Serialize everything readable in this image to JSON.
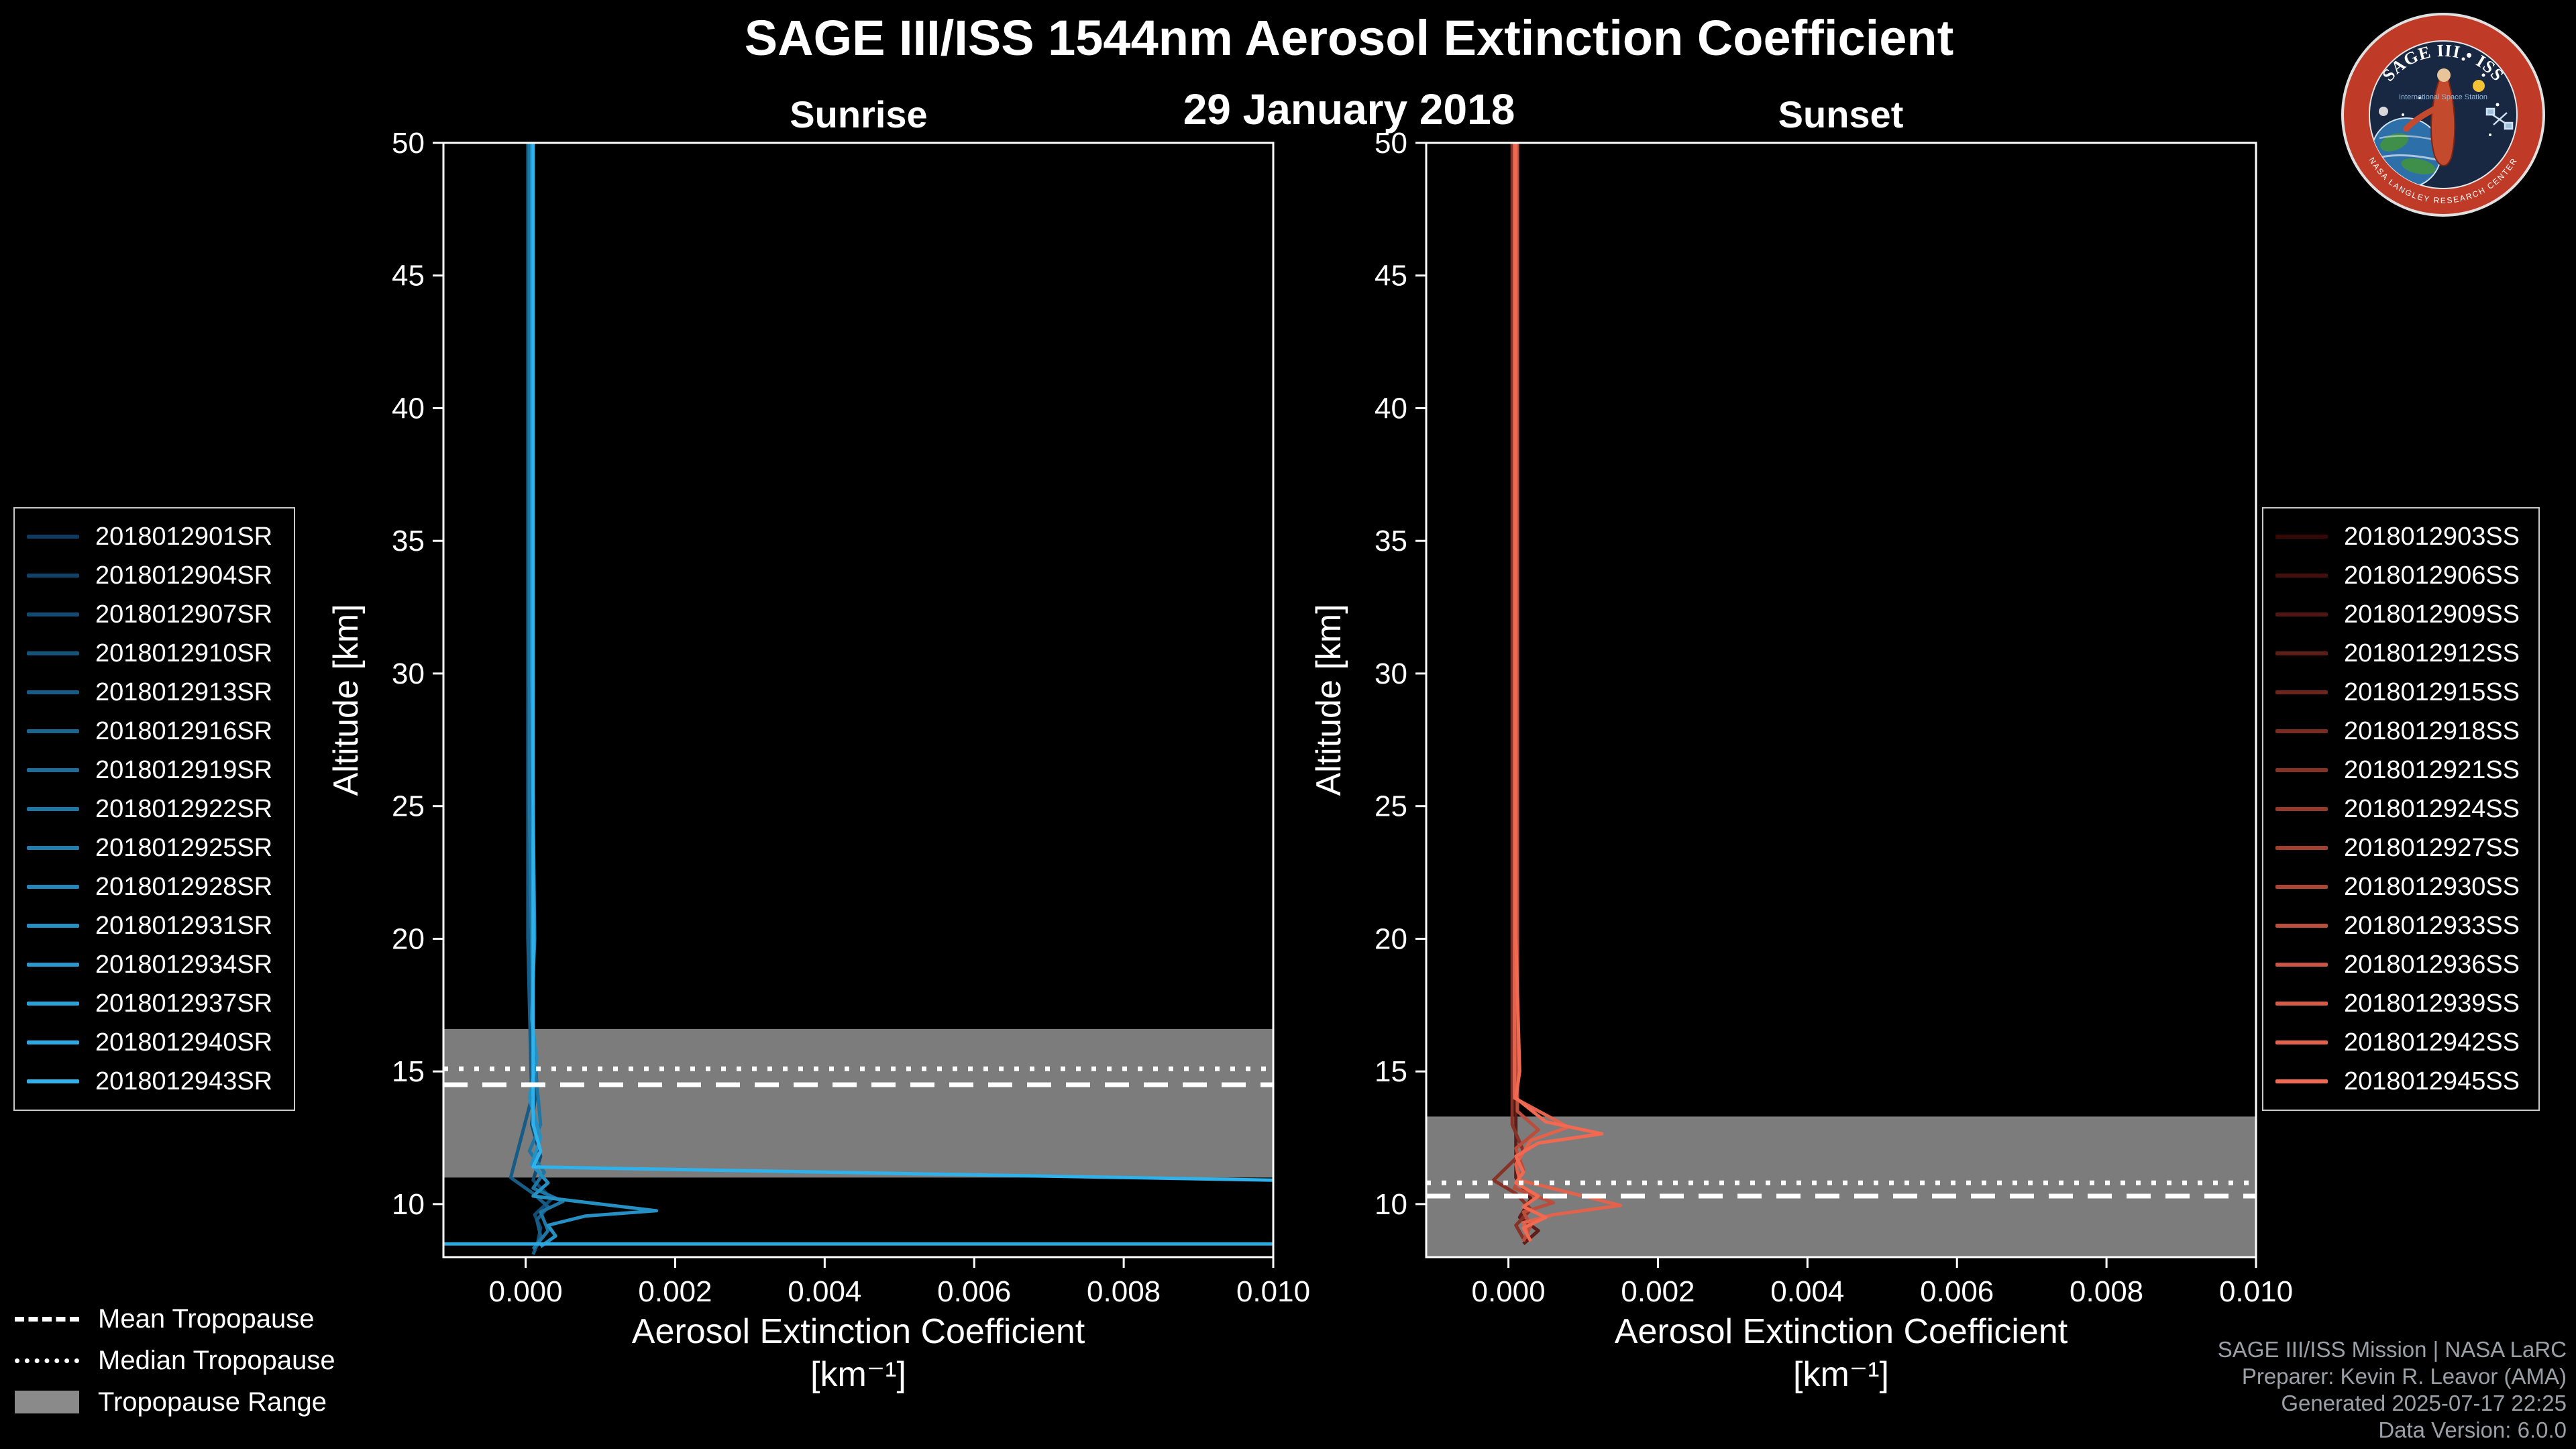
{
  "header": {
    "title": "SAGE III/ISS 1544nm Aerosol Extinction Coefficient",
    "date": "29 January 2018"
  },
  "logo": {
    "title": "SAGE III • ISS",
    "subtitle": "International Space Station",
    "ring_text": "NASA LANGLEY RESEARCH CENTER"
  },
  "tropopause_legend": {
    "mean": "Mean Tropopause",
    "median": "Median Tropopause",
    "range": "Tropopause Range"
  },
  "footer": {
    "line1": "SAGE III/ISS Mission | NASA LaRC",
    "line2": "Preparer: Kevin R. Leavor (AMA)",
    "line3": "Generated 2025-07-17 22:25",
    "line4": "Data Version: 6.0.0"
  },
  "chart_data": [
    {
      "type": "line",
      "title": "Sunrise",
      "xlabel": "Aerosol Extinction Coefficient",
      "xlabel_units": "[km⁻¹]",
      "ylabel": "Altitude [km]",
      "xlim": [
        -0.0011,
        0.01
      ],
      "ylim": [
        8,
        50
      ],
      "xticks": [
        0.0,
        0.002,
        0.004,
        0.006,
        0.008,
        0.01
      ],
      "xtick_labels": [
        "0.000",
        "0.002",
        "0.004",
        "0.006",
        "0.008",
        "0.010"
      ],
      "yticks": [
        10,
        15,
        20,
        25,
        30,
        35,
        40,
        45,
        50
      ],
      "tropopause": {
        "mean": 14.5,
        "median": 15.1,
        "range": [
          11.0,
          16.6
        ]
      },
      "legend": [
        {
          "label": "2018012901SR",
          "color": "#0D3A5E"
        },
        {
          "label": "2018012904SR",
          "color": "#0F4368"
        },
        {
          "label": "2018012907SR",
          "color": "#124B72"
        },
        {
          "label": "2018012910SR",
          "color": "#14547C"
        },
        {
          "label": "2018012913SR",
          "color": "#175C86"
        },
        {
          "label": "2018012916SR",
          "color": "#196590"
        },
        {
          "label": "2018012919SR",
          "color": "#1C6D9A"
        },
        {
          "label": "2018012922SR",
          "color": "#1E76A5"
        },
        {
          "label": "2018012925SR",
          "color": "#207EAF"
        },
        {
          "label": "2018012928SR",
          "color": "#2387B9"
        },
        {
          "label": "2018012931SR",
          "color": "#2590C3"
        },
        {
          "label": "2018012934SR",
          "color": "#2898CD"
        },
        {
          "label": "2018012937SR",
          "color": "#2AA1D7"
        },
        {
          "label": "2018012940SR",
          "color": "#2DA9E1"
        },
        {
          "label": "2018012943SR",
          "color": "#2FB2EB"
        }
      ],
      "profiles": [
        {
          "color": "#124B72",
          "points": [
            [
              6e-05,
              50
            ],
            [
              6e-05,
              18
            ],
            [
              0.00015,
              14.5
            ],
            [
              8e-05,
              13
            ],
            [
              0.0002,
              11.8
            ],
            [
              0.0001,
              10.9
            ],
            [
              0.00035,
              10.2
            ],
            [
              0.00012,
              9.6
            ],
            [
              0.0002,
              9.1
            ],
            [
              0.00015,
              8.4
            ]
          ]
        },
        {
          "color": "#175C86",
          "points": [
            [
              3e-05,
              50
            ],
            [
              3e-05,
              20
            ],
            [
              8e-05,
              14
            ],
            [
              -0.0002,
              11.0
            ],
            [
              0.0001,
              10.4
            ],
            [
              0.0003,
              9.9
            ],
            [
              0.00015,
              9.4
            ],
            [
              0.0002,
              8.8
            ],
            [
              0.0001,
              8.1
            ]
          ]
        },
        {
          "color": "#1E76A5",
          "points": [
            [
              5e-05,
              50
            ],
            [
              5e-05,
              25
            ],
            [
              0.0001,
              16
            ],
            [
              0.0002,
              13
            ],
            [
              5e-05,
              12
            ],
            [
              0.00025,
              11.2
            ],
            [
              0.0001,
              10.6
            ],
            [
              0.0005,
              10.1
            ],
            [
              0.0002,
              9.7
            ],
            [
              0.0003,
              9.0
            ],
            [
              0.0001,
              8.3
            ]
          ]
        },
        {
          "color": "#2590C3",
          "points": [
            [
              8e-05,
              50
            ],
            [
              8e-05,
              30
            ],
            [
              0.00012,
              20
            ],
            [
              8e-05,
              17
            ],
            [
              0.00015,
              15.5
            ],
            [
              5e-05,
              14
            ],
            [
              0.0002,
              12.5
            ],
            [
              8e-05,
              11.5
            ],
            [
              0.0003,
              10.8
            ],
            [
              0.0001,
              10.3
            ],
            [
              0.00175,
              9.75
            ],
            [
              0.0008,
              9.55
            ],
            [
              0.0003,
              9.2
            ],
            [
              0.0004,
              8.8
            ],
            [
              0.0002,
              8.4
            ]
          ]
        },
        {
          "color": "#2FB2EB",
          "points": [
            [
              0.0001,
              50
            ],
            [
              0.0001,
              13
            ],
            [
              0.0002,
              12
            ],
            [
              0.0001,
              11.4
            ],
            [
              0.01,
              10.9
            ]
          ]
        },
        {
          "color": "#2DA9E1",
          "points": [
            [
              -0.0011,
              8.5
            ],
            [
              0.01,
              8.5
            ]
          ]
        }
      ]
    },
    {
      "type": "line",
      "title": "Sunset",
      "xlabel": "Aerosol Extinction Coefficient",
      "xlabel_units": "[km⁻¹]",
      "ylabel": "Altitude [km]",
      "xlim": [
        -0.0011,
        0.01
      ],
      "ylim": [
        8,
        50
      ],
      "xticks": [
        0.0,
        0.002,
        0.004,
        0.006,
        0.008,
        0.01
      ],
      "xtick_labels": [
        "0.000",
        "0.002",
        "0.004",
        "0.006",
        "0.008",
        "0.010"
      ],
      "yticks": [
        10,
        15,
        20,
        25,
        30,
        35,
        40,
        45,
        50
      ],
      "tropopause": {
        "mean": 10.3,
        "median": 10.8,
        "range": [
          8.0,
          13.3
        ]
      },
      "legend": [
        {
          "label": "2018012903SS",
          "color": "#380808"
        },
        {
          "label": "2018012906SS",
          "color": "#450F0D"
        },
        {
          "label": "2018012909SS",
          "color": "#521612"
        },
        {
          "label": "2018012912SS",
          "color": "#5F1D17"
        },
        {
          "label": "2018012915SS",
          "color": "#6C241D"
        },
        {
          "label": "2018012918SS",
          "color": "#7A2B22"
        },
        {
          "label": "2018012921SS",
          "color": "#873227"
        },
        {
          "label": "2018012924SS",
          "color": "#94392C"
        },
        {
          "label": "2018012927SS",
          "color": "#A14031"
        },
        {
          "label": "2018012930SS",
          "color": "#AE4636"
        },
        {
          "label": "2018012933SS",
          "color": "#BB4D3C"
        },
        {
          "label": "2018012936SS",
          "color": "#C85441"
        },
        {
          "label": "2018012939SS",
          "color": "#D55B46"
        },
        {
          "label": "2018012942SS",
          "color": "#E3624B"
        },
        {
          "label": "2018012945SS",
          "color": "#F06950"
        }
      ],
      "profiles": [
        {
          "color": "#5F1D17",
          "points": [
            [
              0.0001,
              50
            ],
            [
              0.0001,
              11
            ],
            [
              0.0003,
              10.2
            ],
            [
              0.00015,
              9.5
            ],
            [
              0.0004,
              9.0
            ],
            [
              0.0002,
              8.5
            ]
          ]
        },
        {
          "color": "#873227",
          "points": [
            [
              5e-05,
              50
            ],
            [
              5e-05,
              13
            ],
            [
              0.0002,
              12
            ],
            [
              -0.0002,
              10.9
            ],
            [
              0.0001,
              10.4
            ],
            [
              0.0003,
              9.8
            ],
            [
              0.0001,
              9.2
            ],
            [
              0.0002,
              8.7
            ]
          ]
        },
        {
          "color": "#BB4D3C",
          "points": [
            [
              0.00012,
              50
            ],
            [
              0.00012,
              13.5
            ],
            [
              0.0004,
              12.8
            ],
            [
              0.0001,
              12.1
            ],
            [
              0.0002,
              11.3
            ],
            [
              8e-05,
              10.6
            ],
            [
              0.0006,
              10.05
            ],
            [
              0.0002,
              9.7
            ],
            [
              0.0003,
              9.2
            ],
            [
              0.0002,
              8.6
            ]
          ]
        },
        {
          "color": "#E3624B",
          "points": [
            [
              8e-05,
              50
            ],
            [
              8e-05,
              14
            ],
            [
              0.0008,
              12.9
            ],
            [
              0.0003,
              12.4
            ],
            [
              0.0001,
              11.5
            ],
            [
              0.00015,
              10.9
            ],
            [
              0.0015,
              9.95
            ],
            [
              0.0006,
              9.6
            ],
            [
              0.0002,
              9.3
            ],
            [
              0.00025,
              8.9
            ]
          ]
        },
        {
          "color": "#F06950",
          "points": [
            [
              0.0001,
              50
            ],
            [
              0.0001,
              20
            ],
            [
              0.00015,
              15
            ],
            [
              0.0001,
              14
            ],
            [
              0.0005,
              13.1
            ],
            [
              0.00125,
              12.65
            ],
            [
              0.0004,
              12.3
            ],
            [
              0.0001,
              11.8
            ],
            [
              0.0002,
              11.2
            ],
            [
              0.0001,
              10.8
            ],
            [
              0.0004,
              10.3
            ],
            [
              0.0002,
              9.9
            ],
            [
              0.0005,
              9.5
            ],
            [
              0.0002,
              9.1
            ],
            [
              0.0003,
              8.6
            ]
          ]
        }
      ]
    }
  ]
}
